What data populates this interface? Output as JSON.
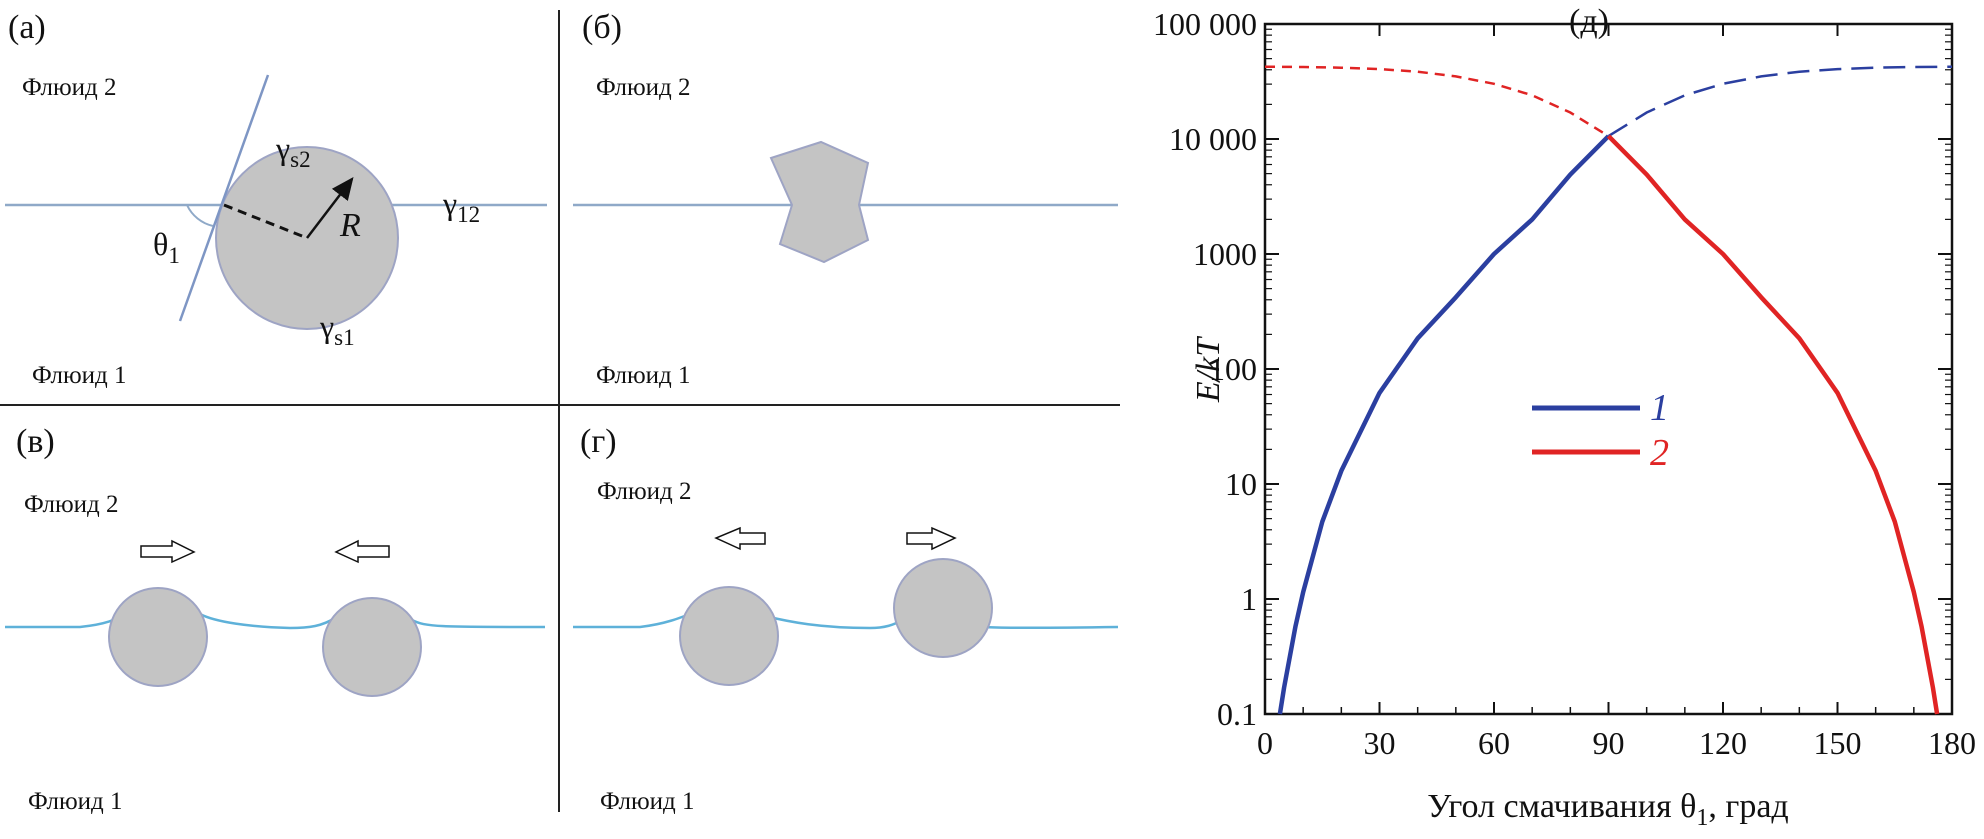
{
  "panels": {
    "a": {
      "letter": "(а)",
      "fluid_top": "Флюид 2",
      "fluid_bottom": "Флюид 1",
      "gamma_s2": "γ",
      "gamma_s2_sub": "s2",
      "gamma_12": "γ",
      "gamma_12_sub": "12",
      "gamma_s1": "γ",
      "gamma_s1_sub": "s1",
      "theta": "θ",
      "theta_sub": "1",
      "radius": "R"
    },
    "b": {
      "letter": "(б)",
      "fluid_top": "Флюид 2",
      "fluid_bottom": "Флюид 1"
    },
    "v": {
      "letter": "(в)",
      "fluid_top": "Флюид 2",
      "fluid_bottom": "Флюид 1"
    },
    "g": {
      "letter": "(г)",
      "fluid_top": "Флюид 2",
      "fluid_bottom": "Флюид 1"
    }
  },
  "chart_data": {
    "panel_letter": "(д)",
    "type": "line",
    "y_scale": "log",
    "xlim": [
      0,
      180
    ],
    "ylim": [
      0.1,
      100000
    ],
    "xlabel_main": "Угол смачивания θ",
    "xlabel_sub": "1",
    "xlabel_tail": ", град",
    "ylabel": "E/kT",
    "x_ticks": [
      0,
      30,
      60,
      90,
      120,
      150,
      180
    ],
    "x_tick_labels": [
      "0",
      "30",
      "60",
      "90",
      "120",
      "150",
      "180"
    ],
    "y_ticks": [
      0.1,
      1,
      10,
      100,
      1000,
      10000,
      100000
    ],
    "y_tick_labels": [
      "0.1",
      "1",
      "10",
      "100",
      "1000",
      "10 000",
      "100 000"
    ],
    "legend_position": "center",
    "series": [
      {
        "name": "1",
        "color": "#2b3fa0",
        "solid_range": [
          0,
          90
        ],
        "dashed_range": [
          90,
          180
        ],
        "x": [
          3.9,
          5,
          8,
          10,
          15,
          20,
          30,
          40,
          50,
          60,
          70,
          80,
          90,
          100,
          110,
          120,
          130,
          140,
          150,
          160,
          170,
          180
        ],
        "y": [
          0.1,
          0.17,
          0.58,
          1.15,
          4.7,
          13,
          62,
          185,
          420,
          1000,
          2000,
          4900,
          10600,
          17000,
          24000,
          30200,
          35000,
          38500,
          40500,
          41700,
          42300,
          42500
        ]
      },
      {
        "name": "2",
        "color": "#e02424",
        "solid_range": [
          90,
          180
        ],
        "dashed_range": [
          0,
          90
        ],
        "x": [
          0,
          10,
          20,
          30,
          40,
          50,
          60,
          70,
          80,
          90,
          100,
          110,
          120,
          130,
          140,
          150,
          160,
          165,
          170,
          172,
          175,
          176.1
        ],
        "y": [
          42500,
          42300,
          41700,
          40500,
          38500,
          35000,
          30200,
          24000,
          17000,
          10600,
          4900,
          2000,
          1000,
          420,
          185,
          62,
          13,
          4.7,
          1.15,
          0.58,
          0.17,
          0.1
        ]
      }
    ]
  }
}
